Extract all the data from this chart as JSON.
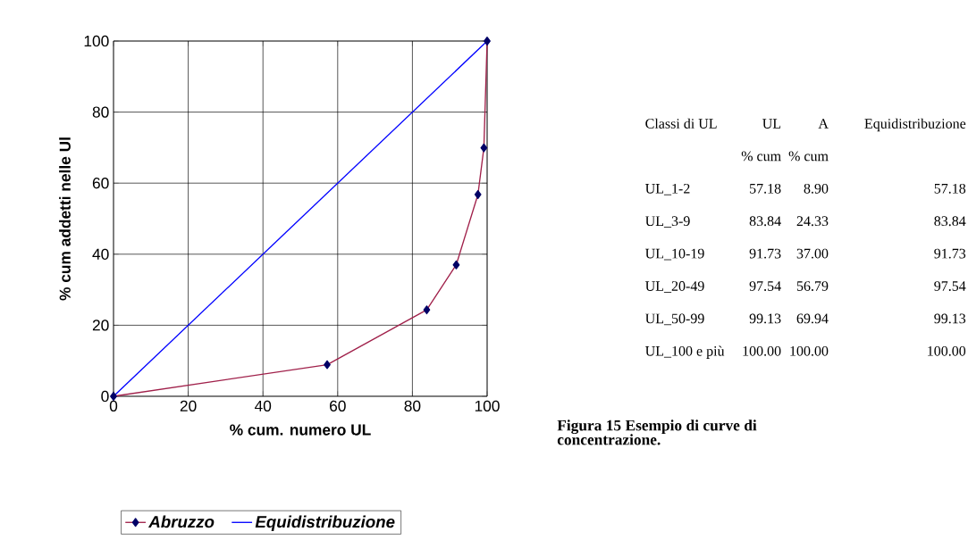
{
  "chart_data": [
    {
      "type": "line",
      "xlabel": "% cum. numero UL",
      "ylabel": "% cum addetti nelle Ul",
      "xlim": [
        0,
        100
      ],
      "ylim": [
        0,
        100
      ],
      "xticks": [
        0,
        20,
        40,
        60,
        80,
        100
      ],
      "yticks": [
        0,
        20,
        40,
        60,
        80,
        100
      ],
      "grid": true,
      "legend": "bottom",
      "series": [
        {
          "name": "Abruzzo",
          "color": "#a0204a",
          "marker": "diamond",
          "x": [
            0,
            57.18,
            83.84,
            91.73,
            97.54,
            99.13,
            100.0
          ],
          "values": [
            0,
            8.9,
            24.33,
            37.0,
            56.79,
            69.94,
            100.0
          ]
        },
        {
          "name": "Equidistribuzione",
          "color": "#0000ff",
          "marker": "none",
          "x": [
            0,
            100
          ],
          "values": [
            0,
            100
          ]
        }
      ],
      "annotations": [
        "Figura 15 Esempio di curve di concentrazione."
      ]
    },
    {
      "type": "other",
      "annotations": [
        "Classi di UL",
        "UL",
        "A",
        "Equidistribuzione",
        "% cum",
        "% cum",
        "UL_1-2",
        "57.18",
        "8.90",
        "57.18",
        "UL_3-9",
        "83.84",
        "24.33",
        "83.84",
        "UL_10-19",
        "91.73",
        "37.00",
        "91.73",
        "UL_20-49",
        "97.54",
        "56.79",
        "97.54",
        "UL_50-99",
        "99.13",
        "69.94",
        "99.13",
        "UL_100 e più",
        "100.00",
        "100.00",
        "100.00"
      ]
    }
  ]
}
